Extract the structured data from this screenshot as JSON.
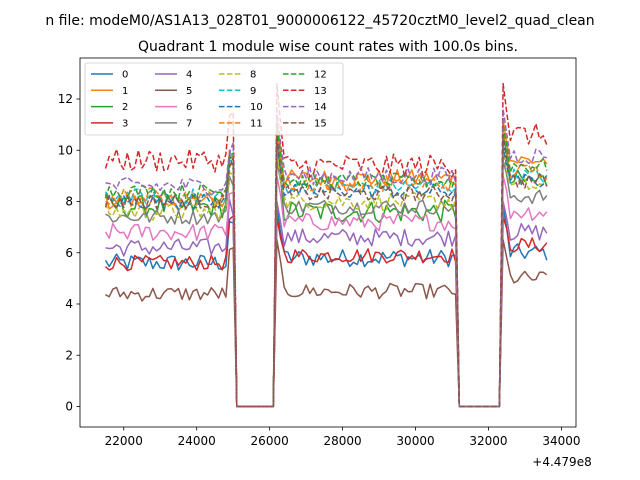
{
  "chart_data": {
    "type": "line",
    "suptitle": "n file: modeM0/AS1A13_028T01_9000006122_45720cztM0_level2_quad_clean",
    "title": "Quadrant 1 module wise count rates with 100.0s bins.",
    "xlabel": "",
    "ylabel": "",
    "x_offset_label": "+4.479e8",
    "xlim": [
      20800,
      34400
    ],
    "ylim": [
      -0.8,
      13.6
    ],
    "x_ticks": [
      22000,
      24000,
      26000,
      28000,
      30000,
      32000,
      34000
    ],
    "y_ticks": [
      0,
      2,
      4,
      6,
      8,
      10,
      12
    ],
    "x_tick_labels": [
      "22000",
      "24000",
      "26000",
      "28000",
      "30000",
      "32000",
      "34000"
    ],
    "y_tick_labels": [
      "0",
      "2",
      "4",
      "6",
      "8",
      "10",
      "12"
    ],
    "grid": false,
    "legend_position": "top-left",
    "legend_columns": 4,
    "segments": [
      {
        "x_start": 21500,
        "x_end": 25000,
        "gap_until": 26200
      },
      {
        "x_start": 26200,
        "x_end": 31100,
        "gap_until": 32400
      },
      {
        "x_start": 32400,
        "x_end": 33600,
        "gap_until": null
      }
    ],
    "bin_size_s": 100,
    "series": [
      {
        "name": "0",
        "color": "#1f77b4",
        "dash": "solid",
        "levels": [
          5.6,
          5.8,
          6.0
        ],
        "peak": 7.8,
        "noise": 0.35
      },
      {
        "name": "1",
        "color": "#ff7f0e",
        "dash": "solid",
        "levels": [
          8.0,
          8.9,
          9.6
        ],
        "peak": 11.2,
        "noise": 0.35
      },
      {
        "name": "2",
        "color": "#2ca02c",
        "dash": "solid",
        "levels": [
          7.8,
          7.6,
          8.8
        ],
        "peak": 10.6,
        "noise": 0.45
      },
      {
        "name": "3",
        "color": "#d62728",
        "dash": "solid",
        "levels": [
          5.6,
          5.9,
          6.3
        ],
        "peak": 7.4,
        "noise": 0.3
      },
      {
        "name": "4",
        "color": "#9467bd",
        "dash": "solid",
        "levels": [
          6.2,
          6.6,
          6.8
        ],
        "peak": 8.0,
        "noise": 0.35
      },
      {
        "name": "5",
        "color": "#8c564b",
        "dash": "solid",
        "levels": [
          4.4,
          4.5,
          5.0
        ],
        "peak": 6.5,
        "noise": 0.3
      },
      {
        "name": "6",
        "color": "#e377c2",
        "dash": "solid",
        "levels": [
          6.8,
          7.2,
          7.6
        ],
        "peak": 9.0,
        "noise": 0.35
      },
      {
        "name": "7",
        "color": "#7f7f7f",
        "dash": "solid",
        "levels": [
          7.4,
          7.8,
          8.2
        ],
        "peak": 9.6,
        "noise": 0.3
      },
      {
        "name": "8",
        "color": "#bcbd22",
        "dash": "dashed",
        "levels": [
          7.6,
          8.0,
          8.6
        ],
        "peak": 10.0,
        "noise": 0.35
      },
      {
        "name": "9",
        "color": "#17becf",
        "dash": "dashed",
        "levels": [
          8.2,
          8.6,
          9.0
        ],
        "peak": 10.4,
        "noise": 0.3
      },
      {
        "name": "10",
        "color": "#1f77b4",
        "dash": "dashed",
        "levels": [
          8.0,
          8.4,
          8.8
        ],
        "peak": 10.2,
        "noise": 0.3
      },
      {
        "name": "11",
        "color": "#ff7f0e",
        "dash": "dashed",
        "levels": [
          8.2,
          8.7,
          9.2
        ],
        "peak": 10.8,
        "noise": 0.35
      },
      {
        "name": "12",
        "color": "#2ca02c",
        "dash": "dashed",
        "levels": [
          8.4,
          8.8,
          9.4
        ],
        "peak": 11.0,
        "noise": 0.3
      },
      {
        "name": "13",
        "color": "#d62728",
        "dash": "dashed",
        "levels": [
          9.6,
          9.4,
          10.6
        ],
        "peak": 12.6,
        "noise": 0.45
      },
      {
        "name": "14",
        "color": "#9467bd",
        "dash": "dashed",
        "levels": [
          8.6,
          9.0,
          9.8
        ],
        "peak": 11.6,
        "noise": 0.35
      },
      {
        "name": "15",
        "color": "#8c564b",
        "dash": "dashed",
        "levels": [
          8.0,
          8.3,
          8.8
        ],
        "peak": 10.6,
        "noise": 0.3
      }
    ]
  }
}
